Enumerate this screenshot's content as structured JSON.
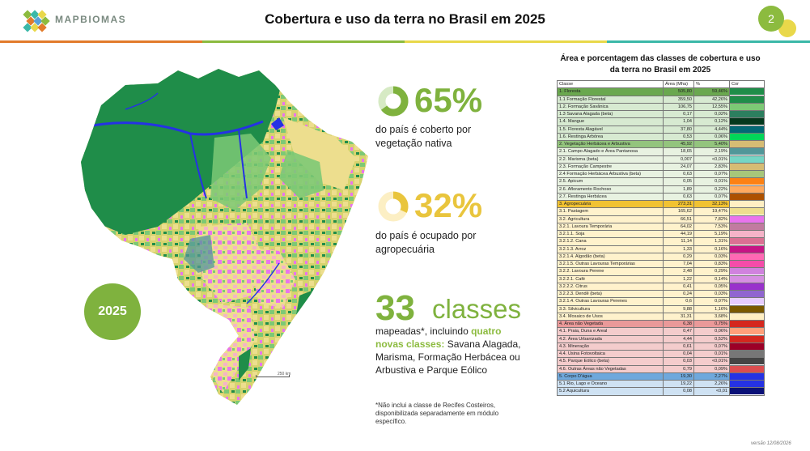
{
  "header": {
    "brand": "MAPBIOMAS",
    "title": "Cobertura e uso da terra no Brasil em 2025",
    "page_number": "2",
    "stripe_colors": [
      "#e27b2b",
      "#8cbb3f",
      "#e9d84a",
      "#3bb8a8"
    ]
  },
  "map": {
    "year": "2025",
    "scale_label": "250 km"
  },
  "stats": {
    "native": {
      "value": "65%",
      "fraction": 0.65,
      "color": "#7fb23e",
      "text": "do país é coberto por vegetação nativa"
    },
    "agro": {
      "value": "32%",
      "fraction": 0.32,
      "color": "#e9c53d",
      "text": "do país é ocupado por agropecuária"
    }
  },
  "classes": {
    "number": "33",
    "word": "classes",
    "text_before": "mapeadas*, incluindo ",
    "highlight": "quatro novas classes:",
    "text_after": " Savana Alagada, Marisma, Formação Herbácea ou Arbustiva e Parque Eólico"
  },
  "footnote": "*Não inclui a classe de Recifes Costeiros, disponibilizada separadamente em módulo específico.",
  "table": {
    "title": "Área e porcentagem das classes de cobertura e uso da terra no Brasil em 2025",
    "headers": [
      "Classe",
      "Área (Mha)",
      "%",
      "Cor"
    ],
    "rows": [
      {
        "name": "1. Floresta",
        "area": "505,80",
        "pct": "59,46%",
        "color": "#1f8d49",
        "bg": "#6aa84f"
      },
      {
        "name": "1.1 Formação Florestal",
        "area": "359,50",
        "pct": "42,26%",
        "color": "#1f8d49",
        "bg": "#d7ead1"
      },
      {
        "name": "1.2. Formação Savânica",
        "area": "106,75",
        "pct": "12,55%",
        "color": "#7dc975",
        "bg": "#d7ead1"
      },
      {
        "name": "1.3 Savana Alagada (beta)",
        "area": "0,17",
        "pct": "0,02%",
        "color": "#2c7f5f",
        "bg": "#d7ead1"
      },
      {
        "name": "1.4. Mangue",
        "area": "1,04",
        "pct": "0,12%",
        "color": "#04381d",
        "bg": "#d7ead1"
      },
      {
        "name": "1.5. Floresta Alagável",
        "area": "37,80",
        "pct": "4,44%",
        "color": "#026975",
        "bg": "#d7ead1"
      },
      {
        "name": "1.6. Restinga Arbórea",
        "area": "0,53",
        "pct": "0,06%",
        "color": "#02d659",
        "bg": "#d7ead1"
      },
      {
        "name": "2. Vegetação Herbácea e Arbustiva",
        "area": "45,92",
        "pct": "5,40%",
        "color": "#d6bc74",
        "bg": "#93c47d"
      },
      {
        "name": "2.1. Campo Alagado e Área Pantanosa",
        "area": "18,65",
        "pct": "2,19%",
        "color": "#519799",
        "bg": "#e8f2e1"
      },
      {
        "name": "2.2. Marisma (beta)",
        "area": "0,007",
        "pct": "<0,01%",
        "color": "#75d6c5",
        "bg": "#e8f2e1"
      },
      {
        "name": "2.3. Formação Campestre",
        "area": "24,07",
        "pct": "2,83%",
        "color": "#d6bc74",
        "bg": "#e8f2e1"
      },
      {
        "name": "2.4 Formação Herbácea Arbustiva (beta)",
        "area": "0,63",
        "pct": "0,07%",
        "color": "#a7c77a",
        "bg": "#e8f2e1"
      },
      {
        "name": "2.5. Apicum",
        "area": "0,05",
        "pct": "0,01%",
        "color": "#fc8114",
        "bg": "#e8f2e1"
      },
      {
        "name": "2.6. Afloramento Rochoso",
        "area": "1,89",
        "pct": "0,22%",
        "color": "#ffaa5f",
        "bg": "#e8f2e1"
      },
      {
        "name": "2.7. Restinga Herbácea",
        "area": "0,63",
        "pct": "0,07%",
        "color": "#ad5100",
        "bg": "#e8f2e1"
      },
      {
        "name": "3. Agropecuária",
        "area": "273,31",
        "pct": "32,13%",
        "color": "#ffefc3",
        "bg": "#f1c232"
      },
      {
        "name": "3.1. Pastagem",
        "area": "165,62",
        "pct": "19,47%",
        "color": "#edde8e",
        "bg": "#fff2cc"
      },
      {
        "name": "3.2. Agricultura",
        "area": "66,51",
        "pct": "7,82%",
        "color": "#e974ed",
        "bg": "#fff2cc"
      },
      {
        "name": "3.2.1. Lavoura Temporária",
        "area": "64,02",
        "pct": "7,53%",
        "color": "#c27ba0",
        "bg": "#fff2cc"
      },
      {
        "name": "3.2.1.1. Soja",
        "area": "44,19",
        "pct": "5,19%",
        "color": "#f5b3c8",
        "bg": "#fff2cc"
      },
      {
        "name": "3.2.1.2. Cana",
        "area": "11,14",
        "pct": "1,31%",
        "color": "#db7093",
        "bg": "#fff2cc"
      },
      {
        "name": "3.2.1.3. Arroz",
        "area": "1,33",
        "pct": "0,16%",
        "color": "#c71585",
        "bg": "#fff2cc"
      },
      {
        "name": "3.2.1.4. Algodão (beta)",
        "area": "0,29",
        "pct": "0,03%",
        "color": "#ff69b4",
        "bg": "#fff2cc"
      },
      {
        "name": "3.2.1.5. Outras Lavouras Temporárias",
        "area": "7,04",
        "pct": "0,83%",
        "color": "#f54ca9",
        "bg": "#fff2cc"
      },
      {
        "name": "3.2.2. Lavoura Perene",
        "area": "2,48",
        "pct": "0,29%",
        "color": "#d082de",
        "bg": "#fff2cc"
      },
      {
        "name": "3.2.2.1. Café",
        "area": "1,22",
        "pct": "0,14%",
        "color": "#d68fe2",
        "bg": "#fff2cc"
      },
      {
        "name": "3.2.2.2. Citrus",
        "area": "0,41",
        "pct": "0,05%",
        "color": "#9932cc",
        "bg": "#fff2cc"
      },
      {
        "name": "3.2.2.3. Dendê (beta)",
        "area": "0,24",
        "pct": "0,03%",
        "color": "#9065d0",
        "bg": "#fff2cc"
      },
      {
        "name": "3.2.1.4. Outras Lavouras Perenes",
        "area": "0,6",
        "pct": "0,07%",
        "color": "#e6ccff",
        "bg": "#fff2cc"
      },
      {
        "name": "3.3. Silvicultura",
        "area": "9,88",
        "pct": "1,16%",
        "color": "#7a5900",
        "bg": "#fff2cc"
      },
      {
        "name": "3.4. Mosaico de Usos",
        "area": "31,31",
        "pct": "3,68%",
        "color": "#ffefc3",
        "bg": "#fff2cc"
      },
      {
        "name": "4. Área não Vegetada",
        "area": "6,38",
        "pct": "0,75%",
        "color": "#d4271e",
        "bg": "#ea9999"
      },
      {
        "name": "4.1. Praia, Duna e Areal",
        "area": "0,47",
        "pct": "0,06%",
        "color": "#ffa07a",
        "bg": "#f4cccc"
      },
      {
        "name": "4.2. Área Urbanizada",
        "area": "4,44",
        "pct": "0,52%",
        "color": "#d4271e",
        "bg": "#f4cccc"
      },
      {
        "name": "4.3. Mineração",
        "area": "0,61",
        "pct": "0,07%",
        "color": "#9c0027",
        "bg": "#f4cccc"
      },
      {
        "name": "4.4. Usina Fotovoltaica",
        "area": "0,04",
        "pct": "0,01%",
        "color": "#777777",
        "bg": "#f4cccc"
      },
      {
        "name": "4.5. Parque Eólico (beta)",
        "area": "0,03",
        "pct": "<0,01%",
        "color": "#444444",
        "bg": "#f4cccc"
      },
      {
        "name": "4.6. Outras Áreas não Vegetadas",
        "area": "0,79",
        "pct": "0,09%",
        "color": "#db4d4f",
        "bg": "#f4cccc"
      },
      {
        "name": "5. Corpo D'água",
        "area": "19,30",
        "pct": "2,27%",
        "color": "#2532e4",
        "bg": "#6fa8dc"
      },
      {
        "name": "5.1 Rio, Lago e Oceano",
        "area": "19,22",
        "pct": "2,26%",
        "color": "#2532e4",
        "bg": "#cfe2f3"
      },
      {
        "name": "5.2 Aquicultura",
        "area": "0,08",
        "pct": "<0,01",
        "color": "#091077",
        "bg": "#cfe2f3"
      }
    ]
  },
  "version": "versão 12/08/2026"
}
